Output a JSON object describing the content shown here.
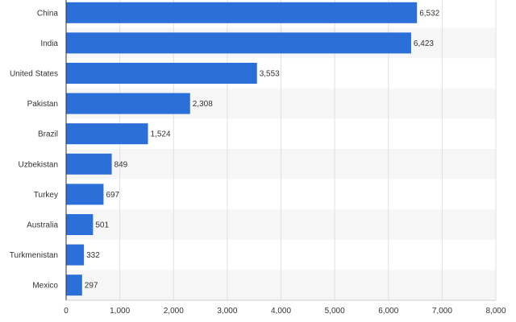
{
  "chart_data": {
    "type": "bar",
    "orientation": "horizontal",
    "categories": [
      "China",
      "India",
      "United States",
      "Pakistan",
      "Brazil",
      "Uzbekistan",
      "Turkey",
      "Australia",
      "Turkmenistan",
      "Mexico"
    ],
    "values": [
      6532,
      6423,
      3553,
      2308,
      1524,
      849,
      697,
      501,
      332,
      297
    ],
    "value_labels": [
      "6,532",
      "6,423",
      "3,553",
      "2,308",
      "1,524",
      "849",
      "697",
      "501",
      "332",
      "297"
    ],
    "x_ticks": [
      0,
      1000,
      2000,
      3000,
      4000,
      5000,
      6000,
      7000,
      8000
    ],
    "x_tick_labels": [
      "0",
      "1,000",
      "2,000",
      "3,000",
      "4,000",
      "5,000",
      "6,000",
      "7,000",
      "8,000"
    ],
    "xlim": [
      0,
      8000
    ],
    "title": "",
    "xlabel": "",
    "ylabel": "",
    "grid": "vertical",
    "legend": "none",
    "bar_color": "#2b6fd9",
    "stripe_color": "#f6f6f6",
    "grid_color": "#e0e0e0",
    "axis_color": "#333333"
  }
}
